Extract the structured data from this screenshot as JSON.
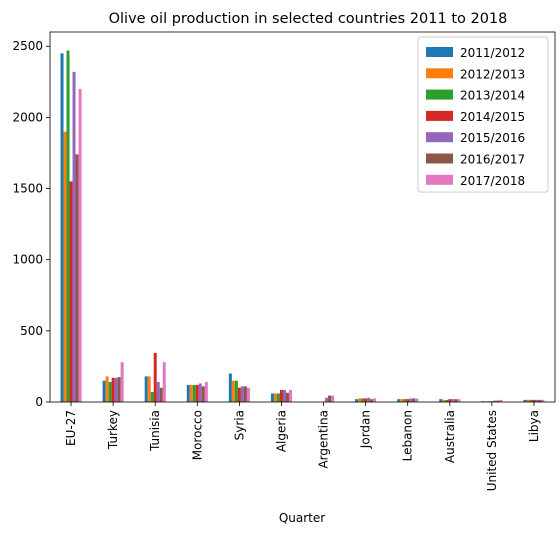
{
  "chart_data": {
    "type": "bar",
    "title": "Olive oil production in selected countries 2011 to 2018",
    "xlabel": "Quarter",
    "ylabel": "",
    "ylim": [
      0,
      2600
    ],
    "yticks": [
      0,
      500,
      1000,
      1500,
      2000,
      2500
    ],
    "grid": false,
    "legend_position": "top-right",
    "categories": [
      "EU-27",
      "Turkey",
      "Tunisia",
      "Morocco",
      "Syria",
      "Algeria",
      "Argentina",
      "Jordan",
      "Lebanon",
      "Australia",
      "United States",
      "Libya"
    ],
    "series": [
      {
        "name": "2011/2012",
        "color": "#1f77b4",
        "values": [
          2450,
          150,
          180,
          120,
          200,
          60,
          0,
          20,
          20,
          20,
          5,
          15
        ]
      },
      {
        "name": "2012/2013",
        "color": "#ff7f0e",
        "values": [
          1900,
          180,
          180,
          120,
          150,
          60,
          0,
          25,
          20,
          15,
          5,
          15
        ]
      },
      {
        "name": "2013/2014",
        "color": "#2ca02c",
        "values": [
          2470,
          140,
          70,
          120,
          150,
          60,
          0,
          25,
          20,
          15,
          5,
          15
        ]
      },
      {
        "name": "2014/2015",
        "color": "#d62728",
        "values": [
          1550,
          170,
          345,
          120,
          100,
          85,
          0,
          25,
          20,
          20,
          5,
          15
        ]
      },
      {
        "name": "2015/2016",
        "color": "#9467bd",
        "values": [
          2320,
          170,
          140,
          130,
          110,
          85,
          30,
          30,
          25,
          20,
          10,
          15
        ]
      },
      {
        "name": "2016/2017",
        "color": "#8c564b",
        "values": [
          1740,
          175,
          100,
          110,
          110,
          65,
          45,
          20,
          25,
          20,
          10,
          15
        ]
      },
      {
        "name": "2017/2018",
        "color": "#e377c2",
        "values": [
          2200,
          280,
          280,
          140,
          100,
          85,
          45,
          25,
          25,
          20,
          15,
          15
        ]
      }
    ]
  }
}
